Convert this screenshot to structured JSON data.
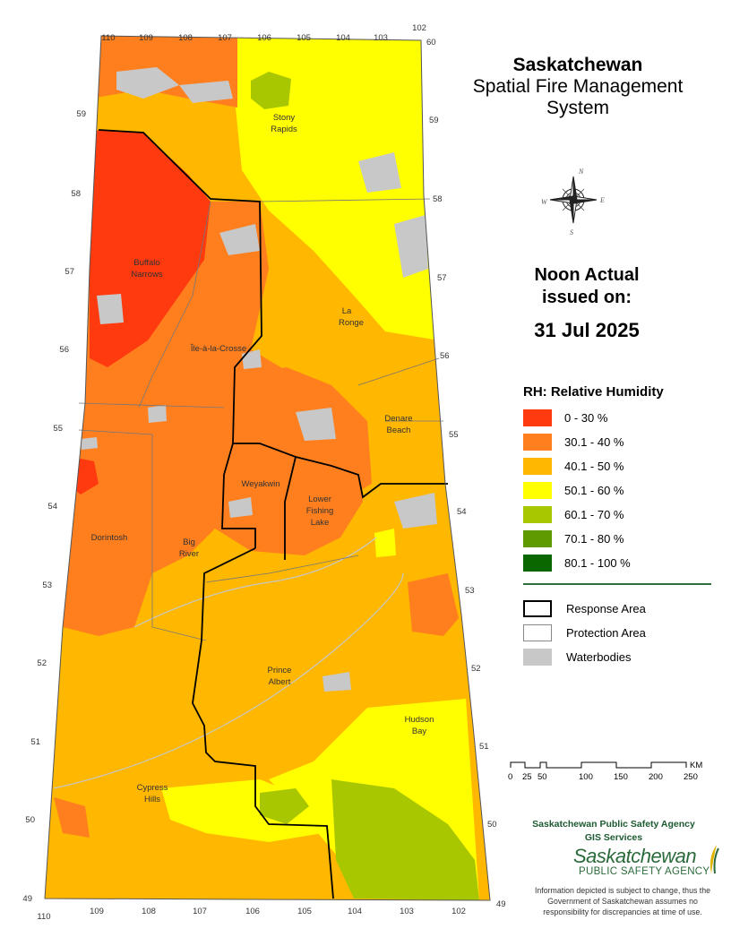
{
  "title": {
    "line1": "Saskatchewan",
    "line2": "Spatial Fire Management",
    "line3": "System"
  },
  "issued": {
    "line1": "Noon Actual",
    "line2": "issued on:",
    "date": "31 Jul 2025"
  },
  "legend": {
    "title": "RH: Relative Humidity",
    "items": [
      {
        "label": "0 - 30 %",
        "color": "#ff3a0f"
      },
      {
        "label": "30.1 - 40 %",
        "color": "#ff7f1f"
      },
      {
        "label": "40.1 - 50 %",
        "color": "#ffb700"
      },
      {
        "label": "50.1 - 60 %",
        "color": "#ffff00"
      },
      {
        "label": "60.1 - 70 %",
        "color": "#a9c700"
      },
      {
        "label": "70.1 - 80 %",
        "color": "#5e9a00"
      },
      {
        "label": "80.1 - 100 %",
        "color": "#0a6700"
      }
    ]
  },
  "legend2": {
    "items": [
      {
        "label": "Response Area",
        "style": "response"
      },
      {
        "label": "Protection Area",
        "style": "protection"
      },
      {
        "label": "Waterbodies",
        "style": "water"
      }
    ]
  },
  "scale": {
    "unit": "KM",
    "ticks": [
      "0",
      "25",
      "50",
      "100",
      "150",
      "200",
      "250"
    ]
  },
  "agency": {
    "line1": "Saskatchewan Public Safety Agency",
    "line2": "GIS  Services"
  },
  "logo": {
    "name": "Saskatchewan",
    "sub": "PUBLIC SAFETY AGENCY"
  },
  "disclaimer": "Information depicted is subject to change, thus the Government of Saskatchewan assumes no responsibility for discrepancies at time of use.",
  "compass_letters": {
    "n": "N",
    "e": "E",
    "s": "S",
    "w": "W"
  },
  "map": {
    "places": [
      "Stony Rapids",
      "Buffalo Narrows",
      "La Ronge",
      "Île-à-la-Crosse",
      "Denare Beach",
      "Weyakwin",
      "Lower Fishing Lake",
      "Dorintosh",
      "Big River",
      "Prince Albert",
      "Hudson Bay",
      "Cypress Hills"
    ],
    "lon_top": [
      "110",
      "109",
      "108",
      "107",
      "106",
      "105",
      "104",
      "103",
      "102"
    ],
    "lon_bottom": [
      "110",
      "109",
      "108",
      "107",
      "106",
      "105",
      "104",
      "103",
      "102"
    ],
    "lat_left": [
      "59",
      "58",
      "57",
      "56",
      "55",
      "54",
      "53",
      "52",
      "51",
      "50",
      "49"
    ],
    "lat_right": [
      "60",
      "59",
      "58",
      "57",
      "56",
      "55",
      "54",
      "53",
      "52",
      "51",
      "50",
      "49"
    ]
  }
}
